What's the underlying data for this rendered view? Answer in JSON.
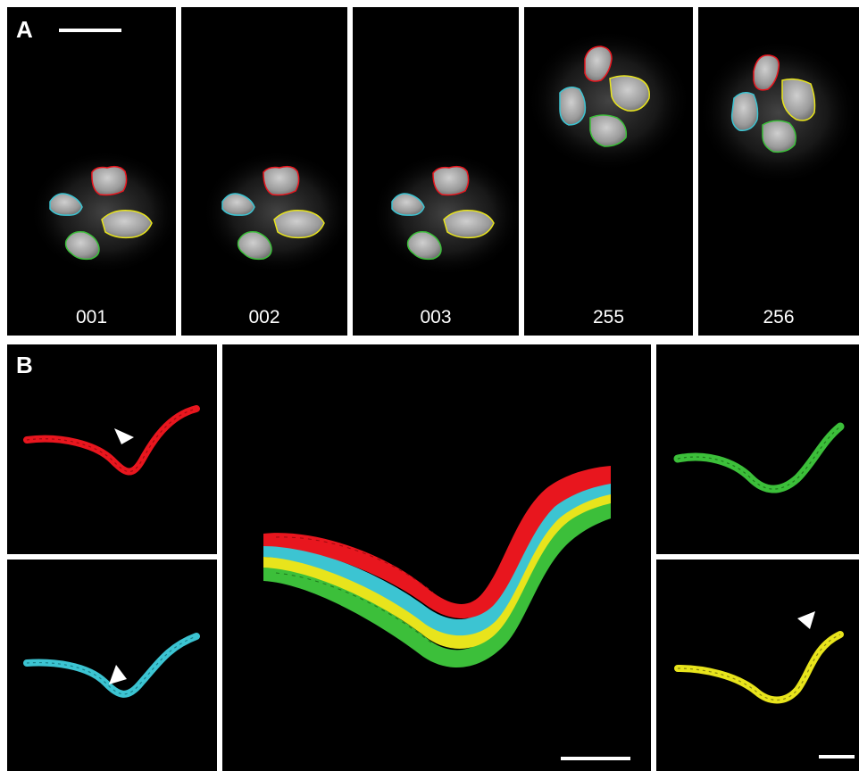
{
  "figure": {
    "panel_a": {
      "letter": "A",
      "frames": [
        {
          "label": "001"
        },
        {
          "label": "002"
        },
        {
          "label": "003"
        },
        {
          "label": "255"
        },
        {
          "label": "256"
        }
      ]
    },
    "panel_b": {
      "letter": "B",
      "traces": [
        {
          "name": "red-trace",
          "color": "#e8161e"
        },
        {
          "name": "cyan-trace",
          "color": "#3cc4d2"
        },
        {
          "name": "green-trace",
          "color": "#3cbf3a"
        },
        {
          "name": "yellow-trace",
          "color": "#e8e41c"
        }
      ]
    },
    "colors": {
      "red": "#e8161e",
      "cyan": "#3cc4d2",
      "green": "#3cbf3a",
      "yellow": "#e8e41c",
      "background": "#000000",
      "divider": "#ffffff"
    }
  }
}
